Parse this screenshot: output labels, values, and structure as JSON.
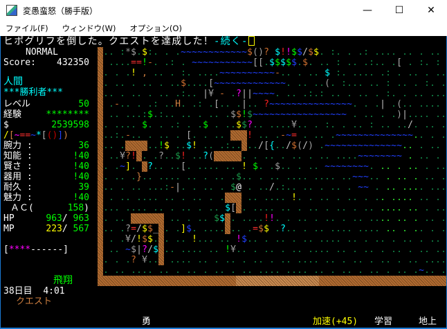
{
  "window": {
    "title": "変愚蛮怒（勝手版）",
    "minimize": "—",
    "maximize": "☐",
    "close": "✕"
  },
  "menu": [
    "ファイル(F)",
    "ウィンドウ(W)",
    "オプション(O)"
  ],
  "message": {
    "text": "ヒポグリフを倒した。クエストを達成した！",
    "more": "-続く-"
  },
  "status": {
    "difficulty": "NORMAL",
    "score_label": "Score:",
    "score": "432350",
    "race": "人間",
    "title": "***勝利者***",
    "level_label": "レベル",
    "level": "50",
    "exp_label": "経験",
    "exp": "********",
    "gold_label": "$",
    "gold": "2539598",
    "equipment": {
      "chars": "/[~==~*[()])",
      "colors": [
        "#ffff00",
        "#d08040",
        "#ff00ff",
        "#ff3030",
        "#ff3030",
        "#2040ff",
        "#00ffff",
        "#b0b0b0",
        "#c00000",
        "#c00000",
        "#2040ff",
        "#d08040"
      ]
    },
    "stats": [
      {
        "label": "腕力 :",
        "value": "36"
      },
      {
        "label": "知能 :",
        "value": "!40"
      },
      {
        "label": "賢さ :",
        "value": "!40"
      },
      {
        "label": "器用 :",
        "value": "!40"
      },
      {
        "label": "耐久 :",
        "value": "39"
      },
      {
        "label": "魅力 :",
        "value": "!40"
      }
    ],
    "ac_label": "ＡＣ(",
    "ac": "158",
    "ac_close": ")",
    "hp_label": "HP",
    "hp": "963",
    "hp_max": "963",
    "mp_label": "MP",
    "mp": "223",
    "mp_max": "567",
    "health_bar": {
      "filled": "****",
      "empty": "------",
      "fraction": 0.4
    },
    "levitation": "飛翔",
    "day": "38日目",
    "time": "4:01",
    "quest": "クエスト"
  },
  "bottom": {
    "state": "勇",
    "speed": "加速(+45)",
    "study": "学習",
    "depth": "地上"
  },
  "colors": {
    "floor": "#128a4a",
    "bright_floor": "#30e030",
    "water": "#2040ff",
    "wall": "#b06a30",
    "player": "#ffffff"
  },
  "map": [
    "#...:*$.$:.....~~~~~~~~~~~~$()?.$!!$$/$$..:.....:.....:..:...",
    "#.....==!-...:...~~~~~~~~~~~[[.$$$$$.$.....:.....:....[...:..:",
    "#.....!.,......:......~~~~~~~~~~-........$.:......:.:..:......",
    "#.:.......:....$....[~~~~~~~~~~~~~.......(..:.......:...:..:..",
    "#.......:......:...|¥.-..?||~~~~......:.:...........:.........",
    "#..-......:...H...:..[....|...?~~~~~~~~~~~~~~~.....|..(.......",
    "#.......:$.:.....:......$$!$~~~~~~~~~~~~~~~~~.........)|......",
    "#.......$.....:....$.....$$?.......¥.....:.......:....../.....",
    "#..:.-..........[.......###!.....-~=.......~~~~~~~~~~~~~~.....",
    "#....####..!$...$!.....:..#../[{../$(/)..~~~~~~~~~~~~~~.......",
    "#...¥?!#...?..$!...?(#####.....................~~~~~~~~.......",
    "#...~]..#?.....[..........!.$...$........~~~~~~~~.............",
    "#......}.................$....................~~~.............",
    "#...........:-|...:.....$@...../.:.............~~.............",
    "#...............:......###.........!..........................",
    "#......................$[#....................................",
    "#.....######.........$$#......!!..............................",
    "#....?=/$$_#...]$......#....=$$..?............................",
    "#....¥/!$$.#.....!.......!$...................................",
    "#....~$|?/$#...........!¥.....................................",
    "#.....?.¥..#..................................................",
    "#.........................................................~..."
  ]
}
